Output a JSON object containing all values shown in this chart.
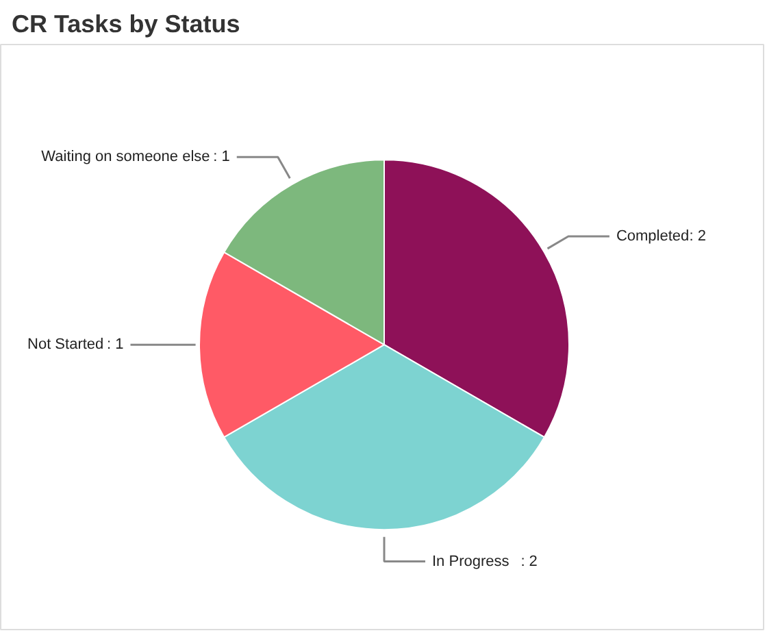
{
  "chart_data": {
    "type": "pie",
    "title": "CR Tasks by Status",
    "categories": [
      "Completed",
      "In Progress",
      "Not Started",
      "Waiting on someone else"
    ],
    "values": [
      2,
      2,
      1,
      1
    ],
    "colors": [
      "#8e1158",
      "#7dd3d1",
      "#ff5a66",
      "#7db87d"
    ],
    "value_labels": [
      ": 2",
      ": 2",
      ": 1",
      ": 1"
    ]
  }
}
